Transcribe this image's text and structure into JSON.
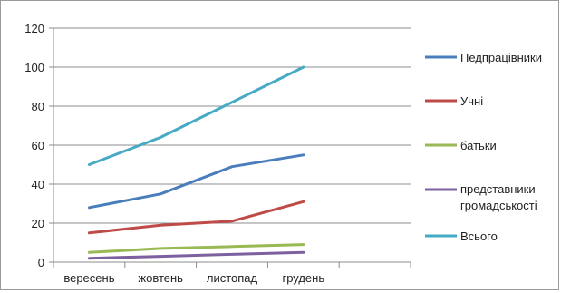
{
  "chart_data": {
    "type": "line",
    "categories": [
      "вересень",
      "жовтень",
      "листопад",
      "грудень"
    ],
    "ylim": [
      0,
      120
    ],
    "yticks": [
      0,
      20,
      40,
      60,
      80,
      100,
      120
    ],
    "grid": true,
    "legend_position": "right",
    "series": [
      {
        "name": "Педпрацівники",
        "values": [
          28,
          35,
          49,
          55
        ],
        "color": "#4a7ebb"
      },
      {
        "name": "Учні",
        "values": [
          15,
          19,
          21,
          31
        ],
        "color": "#be4b48"
      },
      {
        "name": "батьки",
        "values": [
          5,
          7,
          8,
          9
        ],
        "color": "#98b954"
      },
      {
        "name": "представники громадськості",
        "values": [
          2,
          3,
          4,
          5
        ],
        "color": "#7d60a0"
      },
      {
        "name": "Всього",
        "values": [
          50,
          64,
          82,
          100
        ],
        "color": "#46aac5"
      }
    ]
  }
}
